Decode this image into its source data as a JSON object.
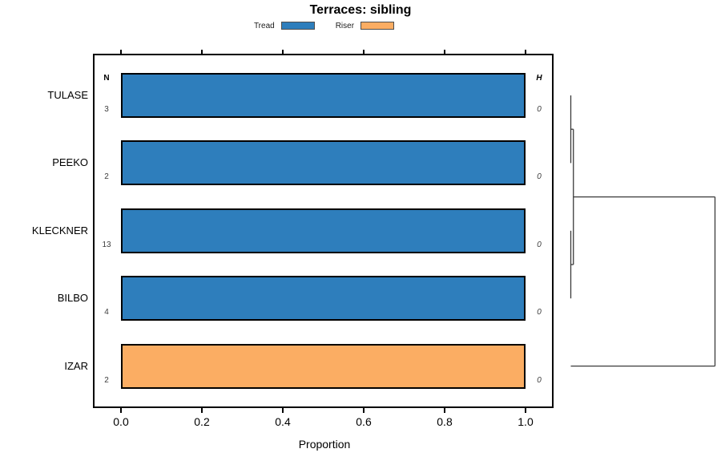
{
  "title": "Terraces: sibling",
  "legend": {
    "items": [
      {
        "label": "Tread",
        "color": "#2e7ebc"
      },
      {
        "label": "Riser",
        "color": "#fbad63"
      }
    ]
  },
  "columns": {
    "n_header": "N",
    "h_header": "H"
  },
  "axis": {
    "xlabel": "Proportion",
    "tick_labels": [
      "0.0",
      "0.2",
      "0.4",
      "0.6",
      "0.8",
      "1.0"
    ]
  },
  "rows": [
    {
      "label": "TULASE",
      "n": "3",
      "h": "0"
    },
    {
      "label": "PEEKO",
      "n": "2",
      "h": "0"
    },
    {
      "label": "KLECKNER",
      "n": "13",
      "h": "0"
    },
    {
      "label": "BILBO",
      "n": "4",
      "h": "0"
    },
    {
      "label": "IZAR",
      "n": "2",
      "h": "0"
    }
  ],
  "chart_data": {
    "type": "bar",
    "orientation": "horizontal",
    "title": "Terraces: sibling",
    "xlabel": "Proportion",
    "xlim": [
      -0.07,
      1.07
    ],
    "x_ticks": [
      0.0,
      0.2,
      0.4,
      0.6,
      0.8,
      1.0
    ],
    "grid": false,
    "legend_position": "top",
    "categories": [
      "TULASE",
      "PEEKO",
      "KLECKNER",
      "BILBO",
      "IZAR"
    ],
    "series": [
      {
        "name": "Tread",
        "color": "#2e7ebc",
        "values": [
          1.0,
          1.0,
          1.0,
          1.0,
          0.0
        ]
      },
      {
        "name": "Riser",
        "color": "#fbad63",
        "values": [
          0.0,
          0.0,
          0.0,
          0.0,
          1.0
        ]
      }
    ],
    "n_values": [
      3,
      2,
      13,
      4,
      2
    ],
    "h_values": [
      0,
      0,
      0,
      0,
      0
    ],
    "dendrogram": {
      "position": "right-of-plot",
      "root": "right",
      "merges": [
        {
          "a": "TULASE",
          "b": "PEEKO",
          "height": 0
        },
        {
          "a": "KLECKNER",
          "b": "BILBO",
          "height": 0
        },
        {
          "a": "#0",
          "b": "#1",
          "height": 0.018
        },
        {
          "a": "#2",
          "b": "IZAR",
          "height": 1.0
        }
      ]
    }
  }
}
